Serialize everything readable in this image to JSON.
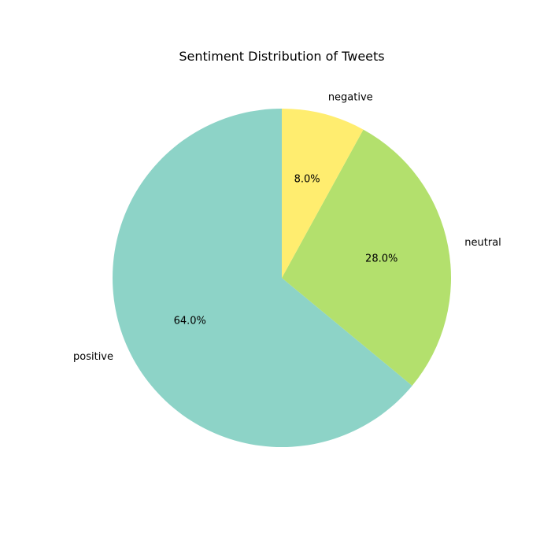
{
  "chart_data": {
    "type": "pie",
    "title": "Sentiment Distribution of Tweets",
    "categories": [
      "positive",
      "neutral",
      "negative"
    ],
    "values": [
      64.0,
      28.0,
      8.0
    ],
    "percent_labels": [
      "64.0%",
      "28.0%",
      "8.0%"
    ],
    "colors": [
      "#8dd3c7",
      "#b3e06d",
      "#ffed6f"
    ],
    "start_angle_deg": 90,
    "direction": "counterclockwise",
    "legend": "none"
  }
}
